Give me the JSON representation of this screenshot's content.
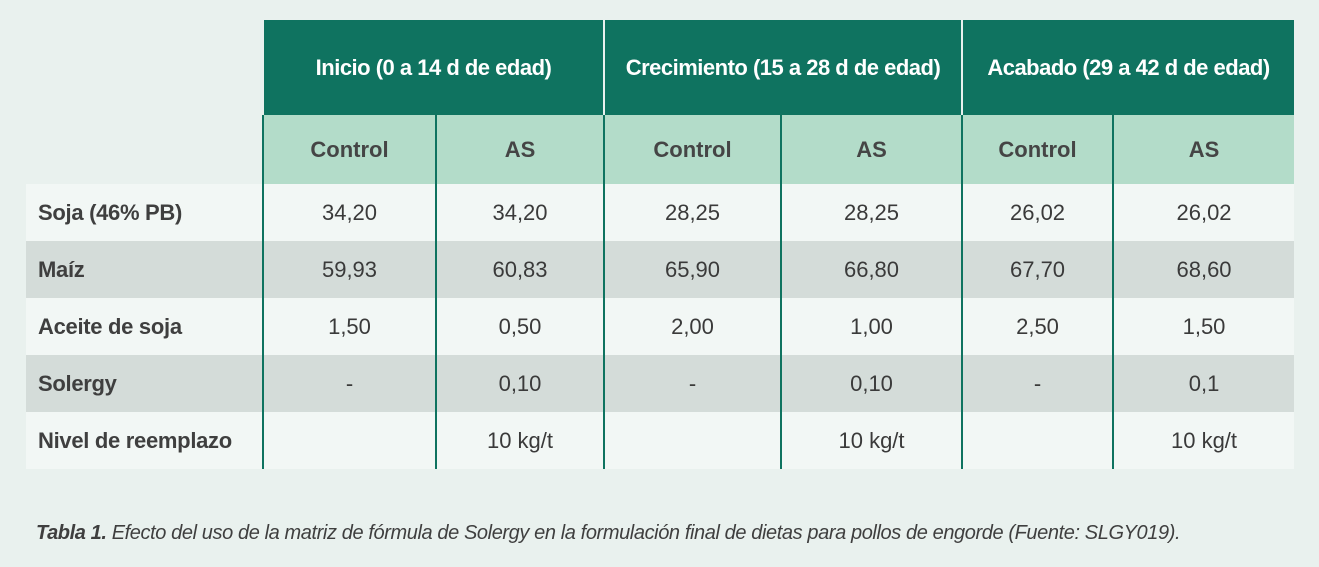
{
  "table": {
    "groups": [
      "Inicio (0 a 14 d de edad)",
      "Crecimiento (15 a 28 d de edad)",
      "Acabado (29 a 42 d de edad)"
    ],
    "subheaders": [
      "Control",
      "AS",
      "Control",
      "AS",
      "Control",
      "AS"
    ],
    "rows": [
      {
        "label": "Soja (46% PB)",
        "values": [
          "34,20",
          "34,20",
          "28,25",
          "28,25",
          "26,02",
          "26,02"
        ]
      },
      {
        "label": "Maíz",
        "values": [
          "59,93",
          "60,83",
          "65,90",
          "66,80",
          "67,70",
          "68,60"
        ]
      },
      {
        "label": "Aceite de soja",
        "values": [
          "1,50",
          "0,50",
          "2,00",
          "1,00",
          "2,50",
          "1,50"
        ]
      },
      {
        "label": "Solergy",
        "values": [
          "-",
          "0,10",
          "-",
          "0,10",
          "-",
          "0,1"
        ]
      },
      {
        "label": "Nivel de reemplazo",
        "values": [
          "",
          "10 kg/t",
          "",
          "10 kg/t",
          "",
          "10 kg/t"
        ]
      }
    ]
  },
  "caption": {
    "label": "Tabla 1.",
    "text": "Efecto del uso de la matriz de fórmula de Solergy en la formulación final de dietas para pollos de engorde (Fuente: SLGY019)."
  },
  "colors": {
    "header_dark": "#0f7360",
    "header_light": "#b3dcc9",
    "row_light": "#f2f7f5",
    "row_dark": "#d4dcd9",
    "background": "#e9f1ee"
  }
}
